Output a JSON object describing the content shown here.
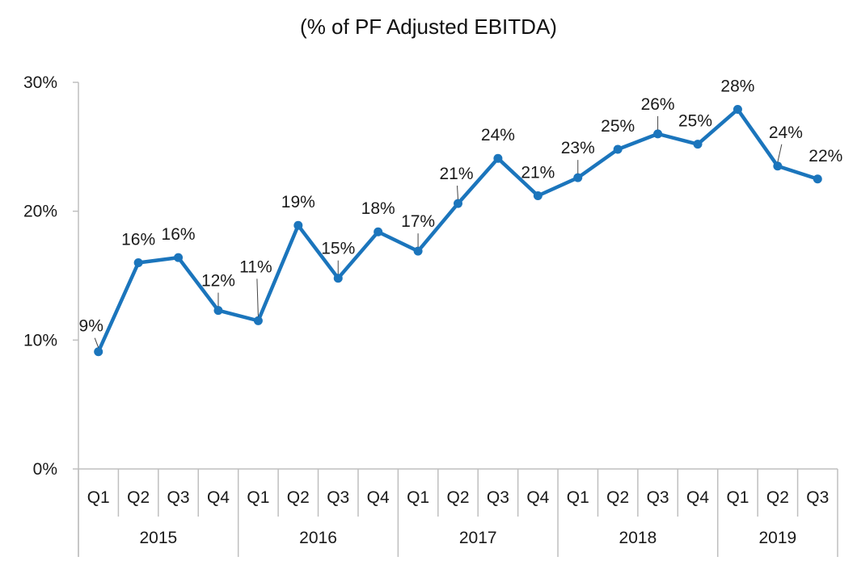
{
  "chart_data": {
    "type": "line",
    "title": "(% of PF Adjusted EBITDA)",
    "xlabel": "",
    "ylabel": "",
    "ylim": [
      0,
      30
    ],
    "y_ticks": [
      0,
      10,
      20,
      30
    ],
    "y_tick_labels": [
      "0%",
      "10%",
      "20%",
      "30%"
    ],
    "grid": false,
    "legend": "none",
    "line_color": "#1b75bc",
    "categories": [
      "Q1",
      "Q2",
      "Q3",
      "Q4",
      "Q1",
      "Q2",
      "Q3",
      "Q4",
      "Q1",
      "Q2",
      "Q3",
      "Q4",
      "Q1",
      "Q2",
      "Q3",
      "Q4",
      "Q1",
      "Q2",
      "Q3"
    ],
    "groups": [
      {
        "label": "2015",
        "count": 4
      },
      {
        "label": "2016",
        "count": 4
      },
      {
        "label": "2017",
        "count": 4
      },
      {
        "label": "2018",
        "count": 4
      },
      {
        "label": "2019",
        "count": 3
      }
    ],
    "values": [
      9.1,
      16.0,
      16.4,
      12.3,
      11.5,
      18.9,
      14.8,
      18.4,
      16.9,
      20.6,
      24.1,
      21.2,
      22.6,
      24.8,
      26.0,
      25.2,
      27.9,
      23.5,
      22.5
    ],
    "data_labels": [
      "9%",
      "16%",
      "16%",
      "12%",
      "11%",
      "19%",
      "15%",
      "18%",
      "17%",
      "21%",
      "24%",
      "21%",
      "23%",
      "25%",
      "26%",
      "25%",
      "28%",
      "24%",
      "22%"
    ]
  }
}
